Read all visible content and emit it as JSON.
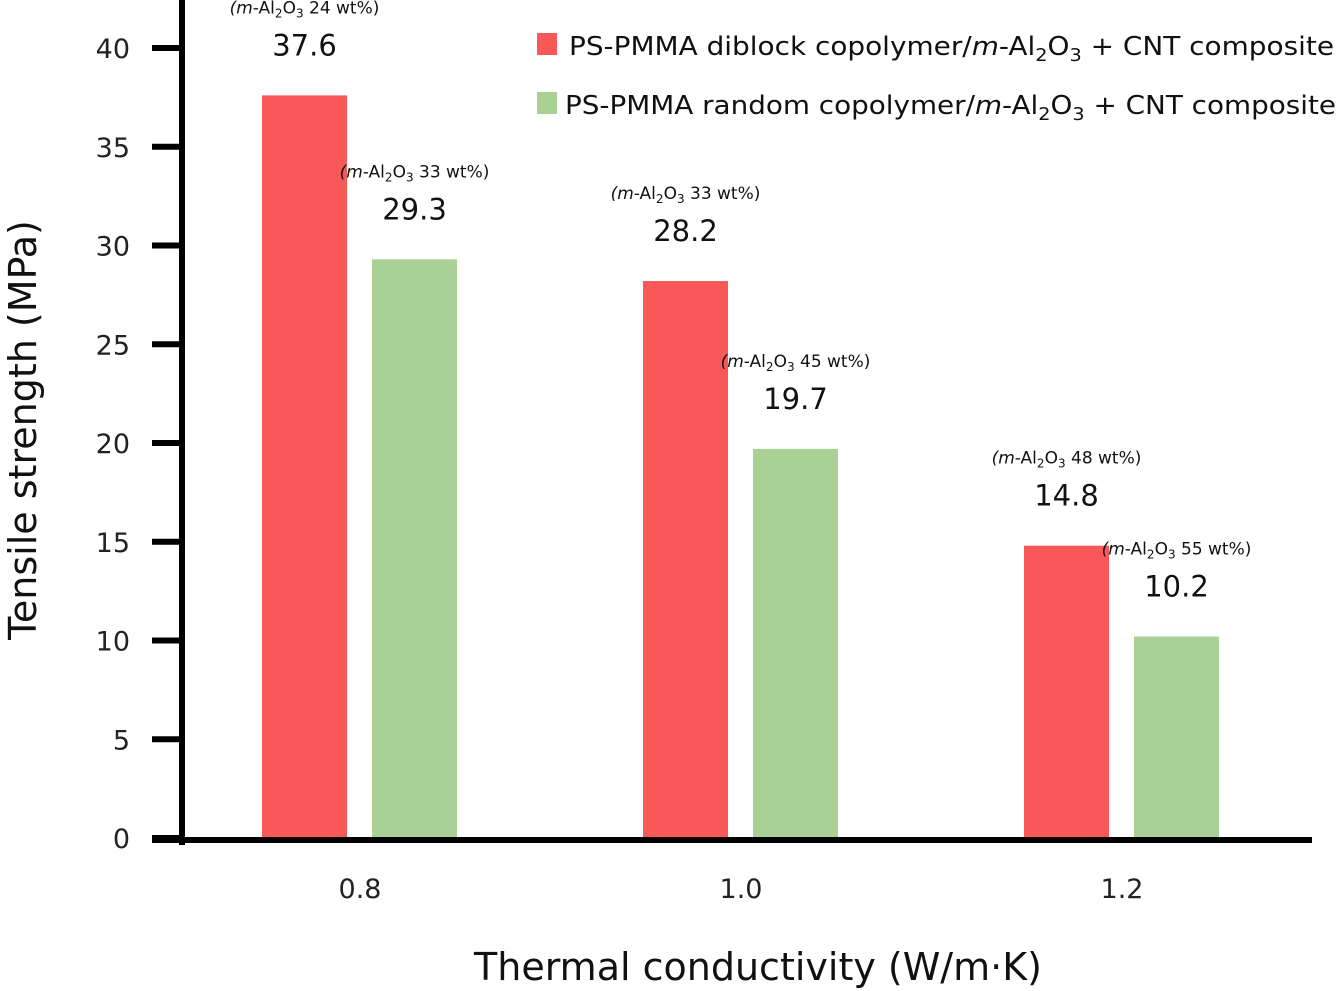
{
  "chart_data": {
    "type": "bar",
    "title": "",
    "xlabel": "Thermal conductivity (W/m·K)",
    "ylabel": "Tensile strength (MPa)",
    "categories": [
      "0.8",
      "1.0",
      "1.2"
    ],
    "ylim": [
      0,
      42
    ],
    "yticks": [
      0,
      5,
      10,
      15,
      20,
      25,
      30,
      35,
      40
    ],
    "grid": false,
    "legend_position": "top-right",
    "series": [
      {
        "name": "PS-PMMA diblock copolymer/m-Al2O3 + CNT composite",
        "legend_parts": [
          "PS-PMMA diblock copolymer/",
          "m",
          "-Al",
          "2",
          "O",
          "3",
          " + CNT composite"
        ],
        "color": "#f95858",
        "values": [
          37.6,
          28.2,
          14.8
        ],
        "value_labels": [
          "37.6",
          "28.2",
          "14.8"
        ],
        "annotations": [
          {
            "prefix": "(",
            "italic": "m",
            "mid": "-Al",
            "sub1": "2",
            "o": "O",
            "sub2": "3",
            "suffix": " 24 wt%)"
          },
          {
            "prefix": "(",
            "italic": "m",
            "mid": "-Al",
            "sub1": "2",
            "o": "O",
            "sub2": "3",
            "suffix": " 33 wt%)"
          },
          {
            "prefix": "(",
            "italic": "m",
            "mid": "-Al",
            "sub1": "2",
            "o": "O",
            "sub2": "3",
            "suffix": " 48 wt%)"
          }
        ]
      },
      {
        "name": "PS-PMMA random copolymer/m-Al2O3 + CNT composite",
        "legend_parts": [
          "PS-PMMA random copolymer/",
          "m",
          "-Al",
          "2",
          "O",
          "3",
          " + CNT composite"
        ],
        "color": "#aad195",
        "values": [
          29.3,
          19.7,
          10.2
        ],
        "value_labels": [
          "29.3",
          "19.7",
          "10.2"
        ],
        "annotations": [
          {
            "prefix": "(",
            "italic": "m",
            "mid": "-Al",
            "sub1": "2",
            "o": "O",
            "sub2": "3",
            "suffix": " 33 wt%)"
          },
          {
            "prefix": "(",
            "italic": "m",
            "mid": "-Al",
            "sub1": "2",
            "o": "O",
            "sub2": "3",
            "suffix": " 45 wt%)"
          },
          {
            "prefix": "(",
            "italic": "m",
            "mid": "-Al",
            "sub1": "2",
            "o": "O",
            "sub2": "3",
            "suffix": " 55 wt%)"
          }
        ]
      }
    ]
  }
}
